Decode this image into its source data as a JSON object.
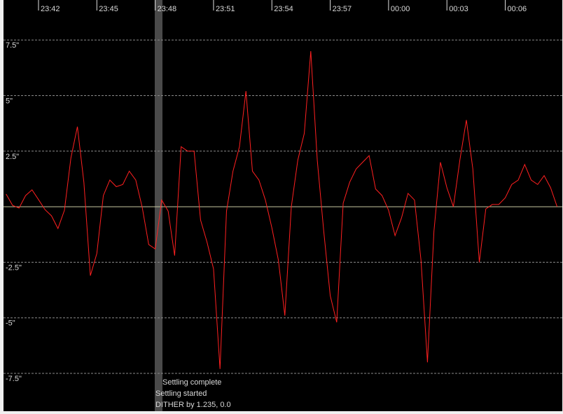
{
  "chart_data": {
    "type": "line",
    "xlim": [
      "23:40:12",
      "00:08:56"
    ],
    "xticks": [
      "23:42",
      "23:45",
      "23:48",
      "23:51",
      "23:54",
      "23:57",
      "00:00",
      "00:03",
      "00:06"
    ],
    "ylim": [
      -9.2,
      9.3
    ],
    "yticks": [
      {
        "value": 7.5,
        "label": "7.5\""
      },
      {
        "value": 5,
        "label": "5\""
      },
      {
        "value": 2.5,
        "label": "2.5\""
      },
      {
        "value": -2.5,
        "label": "-2.5\""
      },
      {
        "value": -5,
        "label": "-5\""
      },
      {
        "value": -7.5,
        "label": "-7.5\""
      }
    ],
    "grid": true,
    "x": [
      "23:40:20",
      "23:40:40",
      "23:41:00",
      "23:41:20",
      "23:41:40",
      "23:42:00",
      "23:42:20",
      "23:42:40",
      "23:43:00",
      "23:43:20",
      "23:43:40",
      "23:44:00",
      "23:44:20",
      "23:44:40",
      "23:45:00",
      "23:45:20",
      "23:45:40",
      "23:46:00",
      "23:46:20",
      "23:46:40",
      "23:47:00",
      "23:47:20",
      "23:47:40",
      "23:48:00",
      "23:48:20",
      "23:48:40",
      "23:49:00",
      "23:49:20",
      "23:49:40",
      "23:50:00",
      "23:50:20",
      "23:50:40",
      "23:51:00",
      "23:51:20",
      "23:51:40",
      "23:52:00",
      "23:52:20",
      "23:52:40",
      "23:53:00",
      "23:53:20",
      "23:53:40",
      "23:54:00",
      "23:54:20",
      "23:54:40",
      "23:55:00",
      "23:55:20",
      "23:55:40",
      "23:56:00",
      "23:56:20",
      "23:56:40",
      "23:57:00",
      "23:57:20",
      "23:57:40",
      "23:58:00",
      "23:58:20",
      "23:58:40",
      "23:59:00",
      "23:59:20",
      "23:59:40",
      "00:00:00",
      "00:00:20",
      "00:00:40",
      "00:01:00",
      "00:01:20",
      "00:01:40",
      "00:02:00",
      "00:02:20",
      "00:02:40",
      "00:03:00",
      "00:03:20",
      "00:03:40",
      "00:04:00",
      "00:04:20",
      "00:04:40",
      "00:05:00",
      "00:05:20",
      "00:05:40",
      "00:06:00",
      "00:06:20",
      "00:06:40",
      "00:07:00",
      "00:07:20",
      "00:07:40",
      "00:08:00",
      "00:08:20",
      "00:08:40"
    ],
    "series": [
      {
        "color": "#ff2020",
        "values": [
          0.57,
          0.06,
          -0.06,
          0.5,
          0.76,
          0.32,
          -0.13,
          -0.41,
          -0.98,
          -0.16,
          2.2,
          3.6,
          1.1,
          -3.1,
          -2.1,
          0.5,
          1.2,
          0.9,
          1.0,
          1.6,
          1.2,
          -0.03,
          -1.7,
          -1.9,
          0.3,
          -0.2,
          -2.2,
          2.7,
          2.5,
          2.5,
          -0.6,
          -1.6,
          -2.8,
          -7.3,
          -0.2,
          1.6,
          2.7,
          5.2,
          1.6,
          1.2,
          0.3,
          -0.95,
          -2.4,
          -4.9,
          0,
          2.1,
          3.3,
          7.0,
          2.1,
          -1.1,
          -4,
          -5.2,
          0.16,
          1.1,
          1.7,
          2.0,
          2.3,
          0.8,
          0.5,
          -0.16,
          -1.3,
          -0.5,
          0.6,
          0.3,
          -2.4,
          -7.0,
          -1.1,
          2.0,
          0.85,
          0,
          2.1,
          3.9,
          1.7,
          -2.5,
          -0.1,
          0.1,
          0.1,
          0.4,
          1.0,
          1.2,
          1.9,
          1.2,
          1.0,
          1.4,
          0.85,
          0
        ]
      }
    ],
    "annotations": [
      "Settling complete",
      "Settling started",
      "DITHER by 1.235, 0.0"
    ]
  }
}
